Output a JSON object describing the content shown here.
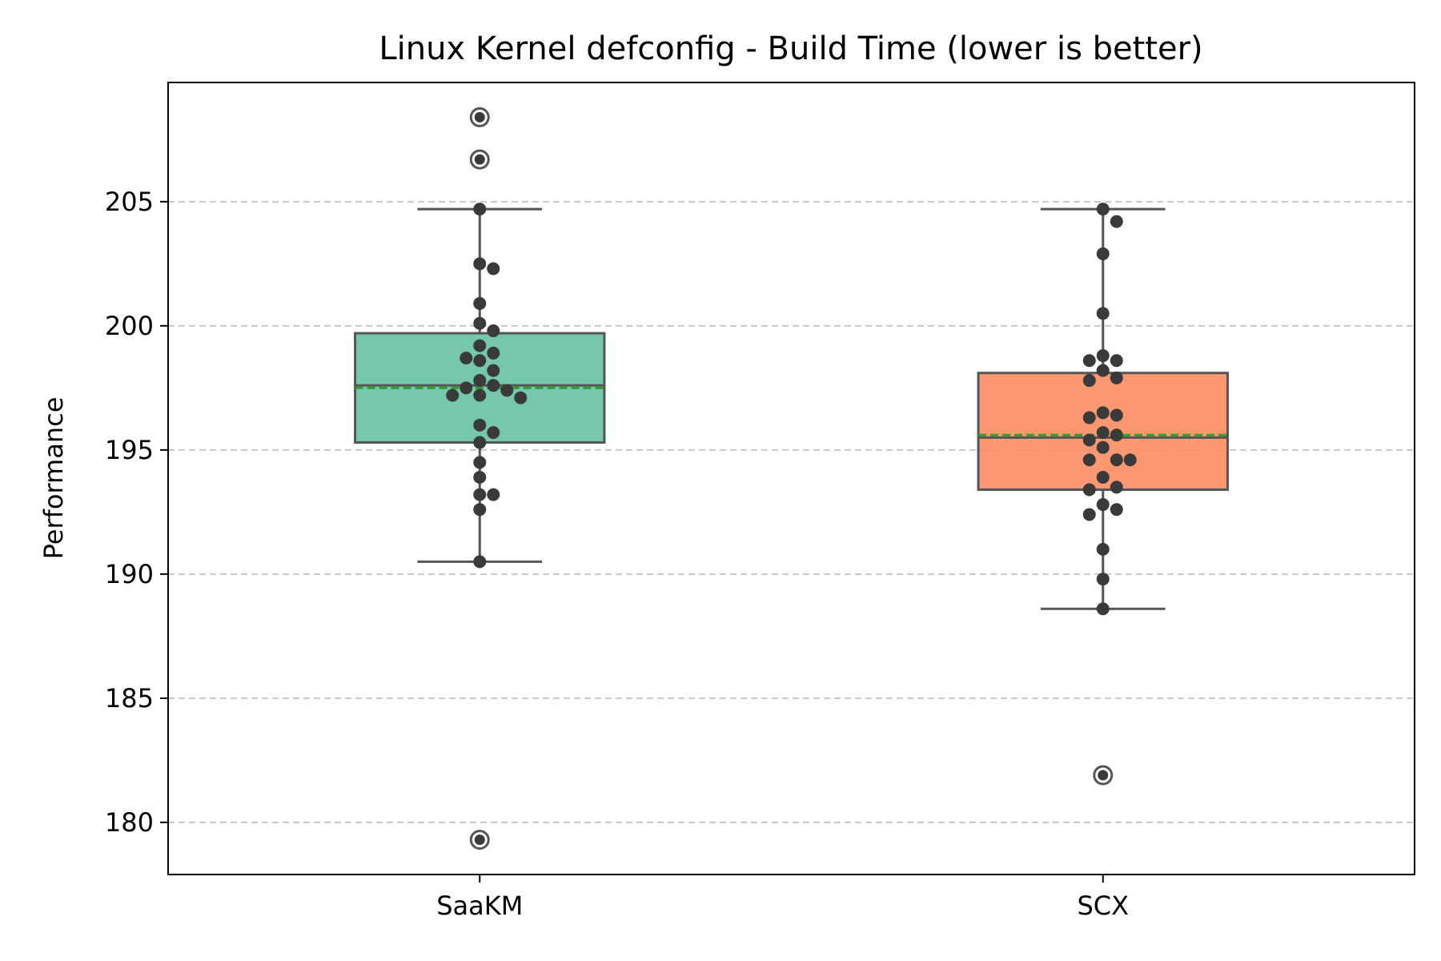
{
  "chart_data": {
    "type": "box",
    "title": "Linux Kernel defconfig - Build Time (lower is better)",
    "xlabel": "",
    "ylabel": "Performance",
    "ylim": [
      177.9,
      209.8
    ],
    "yticks": [
      180,
      185,
      190,
      195,
      200,
      205
    ],
    "grid": {
      "y": true,
      "x": false,
      "style": "dashed"
    },
    "categories": [
      "SaaKM",
      "SCX"
    ],
    "series": [
      {
        "category": "SaaKM",
        "color": "#66c2a5",
        "q1": 195.3,
        "median": 197.6,
        "mean": 197.5,
        "q3": 199.7,
        "whisker_low": 190.5,
        "whisker_high": 204.7,
        "outliers": [
          208.4,
          206.7,
          179.3
        ],
        "points": [
          204.7,
          202.5,
          202.3,
          200.9,
          200.1,
          199.8,
          199.2,
          198.9,
          198.7,
          198.6,
          198.2,
          197.8,
          197.6,
          197.5,
          197.4,
          197.2,
          197.2,
          197.1,
          196.0,
          195.7,
          195.3,
          194.5,
          193.9,
          193.2,
          193.2,
          192.6,
          190.5
        ]
      },
      {
        "category": "SCX",
        "color": "#fc8d62",
        "q1": 193.4,
        "median": 195.5,
        "mean": 195.6,
        "q3": 198.1,
        "whisker_low": 188.6,
        "whisker_high": 204.7,
        "outliers": [
          181.9
        ],
        "points": [
          204.7,
          204.2,
          202.9,
          200.5,
          198.8,
          198.6,
          198.6,
          198.2,
          197.9,
          197.8,
          196.5,
          196.4,
          196.3,
          195.7,
          195.6,
          195.4,
          195.1,
          194.6,
          194.6,
          194.6,
          193.9,
          193.5,
          193.4,
          192.8,
          192.6,
          192.4,
          191.0,
          189.8,
          188.6
        ]
      }
    ]
  }
}
